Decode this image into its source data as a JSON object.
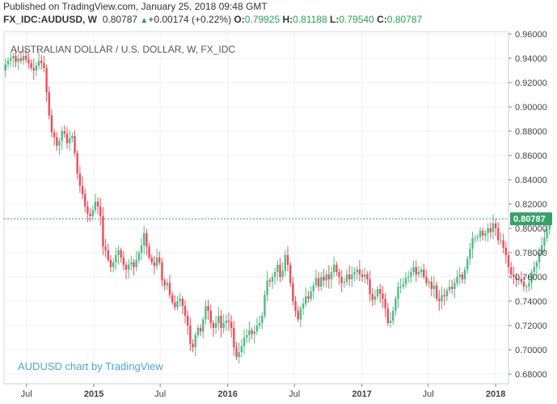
{
  "header": {
    "published": "Published on TradingView.com, January 25, 2018 09:48 GMT",
    "symbol": "FX_IDC:AUDUSD, W",
    "price": "0.80787",
    "change_arrow": "up-triangle-icon",
    "change": "+0.00174 (+0.22%)",
    "o_label": "O:",
    "o_value": "0.79925",
    "h_label": "H:",
    "h_value": "0.81188",
    "l_label": "L:",
    "l_value": "0.79540",
    "c_label": "C:",
    "c_value": "0.80787"
  },
  "colors": {
    "up": "#53b987",
    "down": "#eb4d5c",
    "price_line": "#3aa06a",
    "price_tag": "#3aa06a",
    "grid": "#eef0f2",
    "watermark": "#4aa8cf"
  },
  "chart_data": {
    "type": "candlestick",
    "title": "AUSTRALIAN DOLLAR / U.S. DOLLAR, W, FX_IDC",
    "watermark": "AUDUSD chart by TradingView",
    "xlabel": "",
    "ylabel": "",
    "ylim": [
      0.672,
      0.962
    ],
    "y_ticks": [
      "0.96000",
      "0.94000",
      "0.92000",
      "0.90000",
      "0.88000",
      "0.86000",
      "0.84000",
      "0.82000",
      "0.80000",
      "0.78000",
      "0.76000",
      "0.74000",
      "0.72000",
      "0.70000",
      "0.68000"
    ],
    "x_ticks": [
      {
        "label": "Jul",
        "date": "2014-07",
        "bold": false
      },
      {
        "label": "2015",
        "date": "2015-01",
        "bold": true
      },
      {
        "label": "Jul",
        "date": "2015-07",
        "bold": false
      },
      {
        "label": "2016",
        "date": "2016-01",
        "bold": true
      },
      {
        "label": "Jul",
        "date": "2016-07",
        "bold": false
      },
      {
        "label": "2017",
        "date": "2017-01",
        "bold": true
      },
      {
        "label": "Jul",
        "date": "2017-07",
        "bold": false
      },
      {
        "label": "2018",
        "date": "2018-01",
        "bold": true
      }
    ],
    "last_price": 0.80787,
    "last_price_label": "0.80787",
    "grid": true,
    "closes": [
      0.935,
      0.938,
      0.94,
      0.942,
      0.937,
      0.94,
      0.938,
      0.942,
      0.939,
      0.936,
      0.932,
      0.93,
      0.934,
      0.938,
      0.936,
      0.932,
      0.912,
      0.893,
      0.879,
      0.875,
      0.868,
      0.872,
      0.88,
      0.878,
      0.87,
      0.874,
      0.876,
      0.862,
      0.845,
      0.835,
      0.828,
      0.818,
      0.812,
      0.81,
      0.815,
      0.822,
      0.818,
      0.81,
      0.785,
      0.782,
      0.774,
      0.768,
      0.772,
      0.778,
      0.782,
      0.776,
      0.77,
      0.766,
      0.77,
      0.772,
      0.768,
      0.774,
      0.78,
      0.786,
      0.796,
      0.785,
      0.776,
      0.772,
      0.769,
      0.776,
      0.772,
      0.757,
      0.753,
      0.755,
      0.745,
      0.739,
      0.735,
      0.74,
      0.742,
      0.736,
      0.728,
      0.72,
      0.705,
      0.702,
      0.712,
      0.718,
      0.715,
      0.725,
      0.736,
      0.732,
      0.722,
      0.718,
      0.722,
      0.728,
      0.718,
      0.722,
      0.724,
      0.723,
      0.718,
      0.702,
      0.694,
      0.698,
      0.703,
      0.71,
      0.712,
      0.716,
      0.713,
      0.715,
      0.72,
      0.722,
      0.728,
      0.745,
      0.757,
      0.756,
      0.76,
      0.764,
      0.77,
      0.76,
      0.765,
      0.778,
      0.77,
      0.755,
      0.74,
      0.732,
      0.725,
      0.734,
      0.738,
      0.744,
      0.742,
      0.748,
      0.753,
      0.759,
      0.752,
      0.76,
      0.757,
      0.762,
      0.758,
      0.764,
      0.77,
      0.764,
      0.76,
      0.755,
      0.756,
      0.762,
      0.758,
      0.762,
      0.764,
      0.766,
      0.762,
      0.76,
      0.762,
      0.758,
      0.746,
      0.741,
      0.744,
      0.75,
      0.746,
      0.742,
      0.734,
      0.722,
      0.724,
      0.732,
      0.742,
      0.752,
      0.752,
      0.754,
      0.759,
      0.76,
      0.764,
      0.768,
      0.762,
      0.764,
      0.766,
      0.76,
      0.755,
      0.756,
      0.75,
      0.753,
      0.742,
      0.74,
      0.745,
      0.744,
      0.749,
      0.752,
      0.75,
      0.755,
      0.76,
      0.762,
      0.758,
      0.766,
      0.775,
      0.783,
      0.792,
      0.792,
      0.793,
      0.798,
      0.794,
      0.796,
      0.8,
      0.797,
      0.804,
      0.8,
      0.79,
      0.79,
      0.784,
      0.778,
      0.768,
      0.762,
      0.76,
      0.758,
      0.758,
      0.756,
      0.752,
      0.752,
      0.755,
      0.764,
      0.768,
      0.772,
      0.78,
      0.786,
      0.792,
      0.799,
      0.808
    ]
  }
}
